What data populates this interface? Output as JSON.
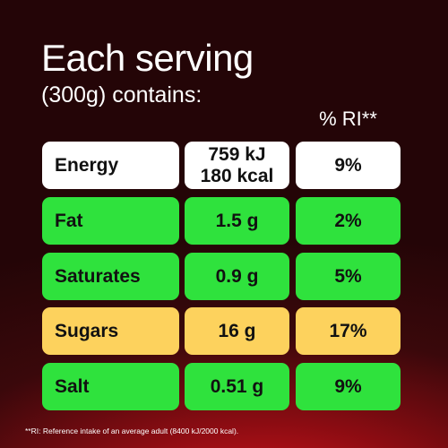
{
  "header": {
    "title": "Each serving",
    "subtitle": "(300g) contains:",
    "ri_label": "% RI**"
  },
  "table": {
    "rows": [
      {
        "name": "Energy",
        "amount": [
          "759 kJ",
          "180 kcal"
        ],
        "ri": "9%"
      },
      {
        "name": "Fat",
        "amount": [
          "1.5 g"
        ],
        "ri": "2%"
      },
      {
        "name": "Saturates",
        "amount": [
          "0.9 g"
        ],
        "ri": "5%"
      },
      {
        "name": "Sugars",
        "amount": [
          "16 g"
        ],
        "ri": "17%"
      },
      {
        "name": "Salt",
        "amount": [
          "0.51 g"
        ],
        "ri": "9%"
      }
    ]
  },
  "footnote": "**RI: Reference intake of an average adult (8400 kJ/2000 kcal)."
}
